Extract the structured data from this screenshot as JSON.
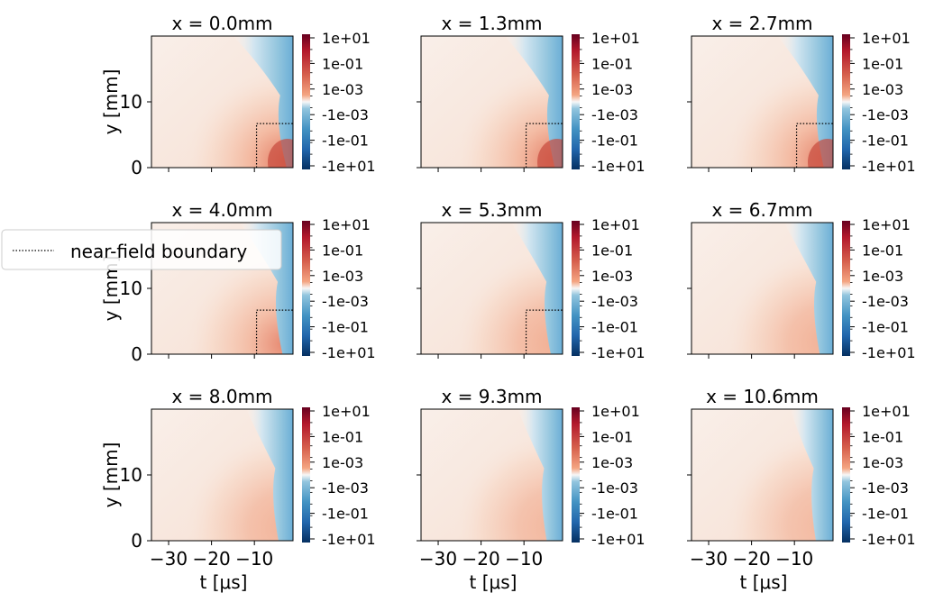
{
  "chart_data": {
    "type": "heatmap",
    "layout": "3x3 grid of small-multiple heatmaps with per-panel colorbars",
    "colormap": "RdBu_r (diverging, symmetric log)",
    "colors": {
      "positive_max": "#67001f",
      "positive_mid": "#f4a582",
      "neutral": "#f7f7f7",
      "negative_mid": "#92c5de",
      "negative_max": "#053061",
      "boundary_line": "#000000"
    },
    "xlabel": "t [μs]",
    "ylabel": "y [mm]",
    "xlim": [
      -34,
      -1
    ],
    "ylim": [
      0,
      20
    ],
    "xticks": [
      -30,
      -20,
      -10
    ],
    "xtick_labels": [
      "−30",
      "−20",
      "−10"
    ],
    "yticks": [
      0,
      10
    ],
    "ytick_labels": [
      "0",
      "10"
    ],
    "colorbar_ticks": [
      "1e+01",
      "1e-01",
      "1e-03",
      "-1e-03",
      "-1e-01",
      "-1e+01"
    ],
    "legend": {
      "entries": [
        "near-field boundary"
      ],
      "placement": "left, between first and second rows",
      "line_style": "dotted"
    },
    "panels": [
      {
        "title": "x = 0.0mm",
        "x_mm": 0.0,
        "boundary": {
          "t_start": -9.5,
          "y_top": 6.7
        }
      },
      {
        "title": "x = 1.3mm",
        "x_mm": 1.3,
        "boundary": {
          "t_start": -9.5,
          "y_top": 6.7
        }
      },
      {
        "title": "x = 2.7mm",
        "x_mm": 2.7,
        "boundary": {
          "t_start": -9.5,
          "y_top": 6.7
        }
      },
      {
        "title": "x = 4.0mm",
        "x_mm": 4.0,
        "boundary": {
          "t_start": -9.5,
          "y_top": 6.7
        }
      },
      {
        "title": "x = 5.3mm",
        "x_mm": 5.3,
        "boundary": {
          "t_start": -9.5,
          "y_top": 6.7
        }
      },
      {
        "title": "x = 6.7mm",
        "x_mm": 6.7,
        "boundary": null
      },
      {
        "title": "x = 8.0mm",
        "x_mm": 8.0,
        "boundary": null
      },
      {
        "title": "x = 9.3mm",
        "x_mm": 9.3,
        "boundary": null
      },
      {
        "title": "x = 10.6mm",
        "x_mm": 10.6,
        "boundary": null
      }
    ]
  }
}
